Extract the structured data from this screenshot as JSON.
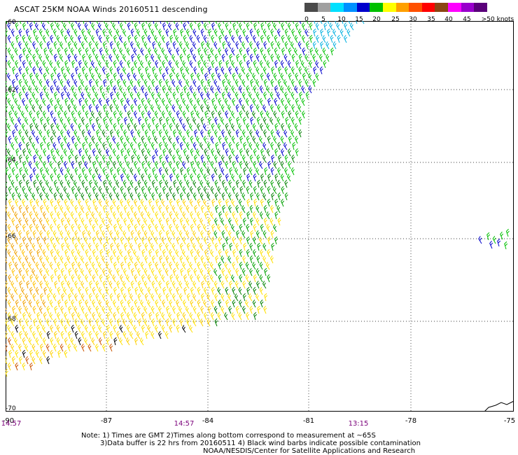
{
  "title": "ASCAT 25KM NOAA Winds 20160511 descending",
  "legend": {
    "colors": [
      "#4a4a4a",
      "#a0a0a0",
      "#00e0ff",
      "#0090ff",
      "#0000cc",
      "#00c000",
      "#ffff00",
      "#ffa000",
      "#ff5000",
      "#ff0000",
      "#8b4513",
      "#ff00ff",
      "#9900cc",
      "#5a007a"
    ],
    "labels": [
      "0",
      "5",
      "10",
      "15",
      "20",
      "25",
      "30",
      "35",
      "40",
      "45",
      ">50 knots"
    ]
  },
  "map": {
    "lat_labels": [
      "-60",
      "-62",
      "-64",
      "-66",
      "-68",
      "-70"
    ],
    "lon_labels": [
      "-90",
      "-87",
      "-84",
      "-81",
      "-78",
      "-75"
    ],
    "time_labels": [
      "14:57",
      "14:57",
      "13:15"
    ]
  },
  "notes": {
    "line1": "Note: 1) Times are GMT 2)Times along bottom correspond to measurement at ~65S",
    "line2": "3)Data buffer is 22 hrs from 20160511 4) Black wind barbs indicate possible contamination",
    "line3": "NOAA/NESDIS/Center for Satellite Applications and Research"
  }
}
